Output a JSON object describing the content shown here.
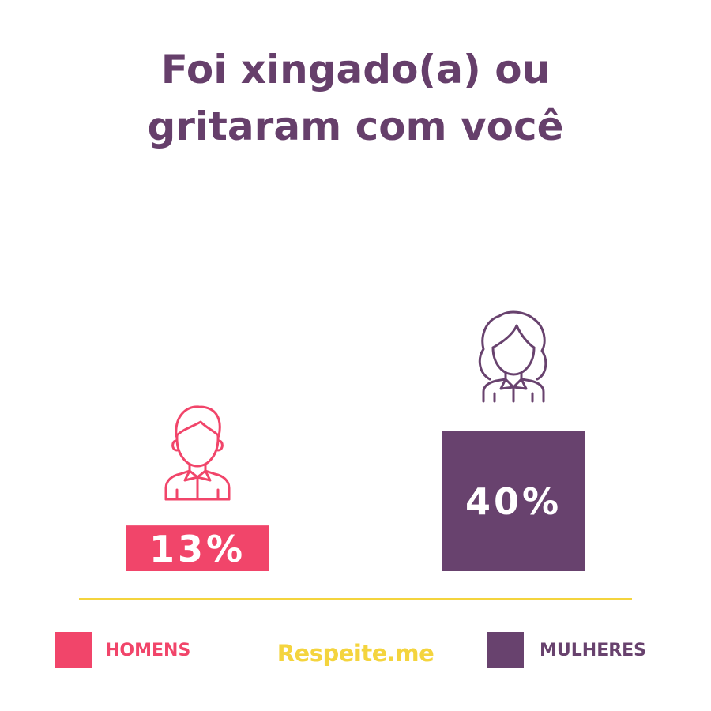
{
  "title_lines": [
    "Foi xingado(a) ou",
    "gritaram com você"
  ],
  "chart_data": {
    "type": "bar",
    "title": "Foi xingado(a) ou gritaram com você",
    "categories": [
      "HOMENS",
      "MULHERES"
    ],
    "values": [
      13,
      40
    ],
    "value_labels": [
      "13%",
      "40%"
    ],
    "unit": "%",
    "ylim": [
      0,
      100
    ],
    "grid": false,
    "legend_placement": "bottom",
    "colors": [
      "#f1456a",
      "#68426e"
    ],
    "icons": [
      "man-icon",
      "woman-icon"
    ]
  },
  "legend": {
    "items": [
      {
        "label": "HOMENS",
        "color": "#f1456a"
      },
      {
        "label": "MULHERES",
        "color": "#68426e"
      }
    ]
  },
  "brand": {
    "text": "Respeite.me",
    "color": "#f4d43e"
  },
  "colors": {
    "title": "#663f6b",
    "baseline": "#f4d43e"
  }
}
